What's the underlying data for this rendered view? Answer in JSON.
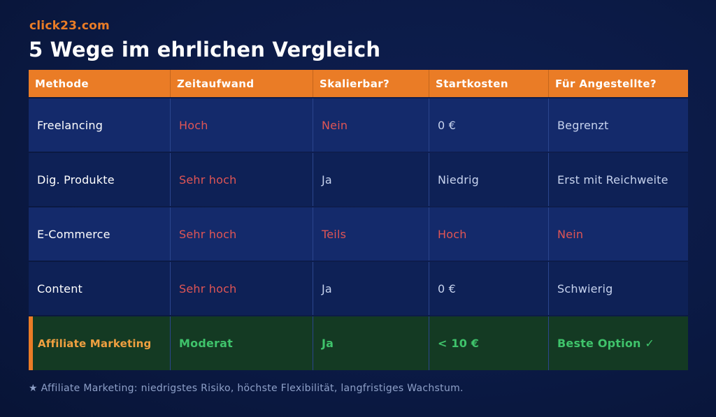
{
  "brand": "click23.com",
  "title": "5 Wege im ehrlichen Vergleich",
  "table": {
    "headers": [
      "Methode",
      "Zeitaufwand",
      "Skalierbar?",
      "Startkosten",
      "Für Angestellte?"
    ],
    "rows": [
      [
        "Freelancing",
        "Hoch",
        "Nein",
        "0 €",
        "Begrenzt"
      ],
      [
        "Dig. Produkte",
        "Sehr hoch",
        "Ja",
        "Niedrig",
        "Erst mit Reichweite"
      ],
      [
        "E-Commerce",
        "Sehr hoch",
        "Teils",
        "Hoch",
        "Nein"
      ],
      [
        "Content",
        "Sehr hoch",
        "Ja",
        "0 €",
        "Schwierig"
      ],
      [
        "Affiliate Marketing",
        "Moderat",
        "Ja",
        "< 10 €",
        "Beste Option ✓"
      ]
    ]
  },
  "colors": {
    "accent_orange": "#ea7c26",
    "negative_red": "#e05555",
    "positive_green": "#3fc36b",
    "background_navy": "#0b1a45"
  },
  "footnote": "★  Affiliate Marketing: niedrigstes Risiko, höchste Flexibilität, langfristiges Wachstum."
}
